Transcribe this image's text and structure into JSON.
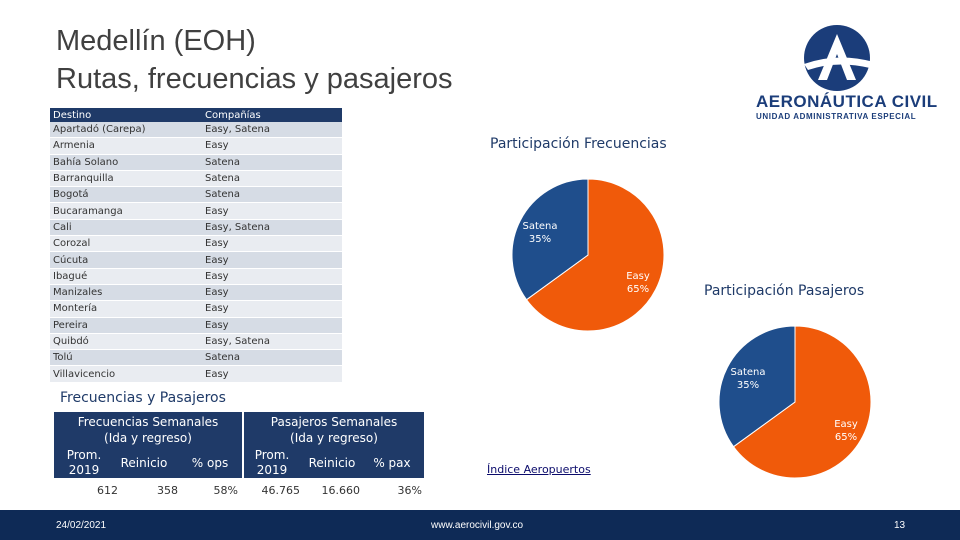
{
  "title": {
    "line1": "Medellín (EOH)",
    "line2": "Rutas, frecuencias y pasajeros"
  },
  "logo": {
    "name": "AERONÁUTICA CIVIL",
    "subtitle": "UNIDAD ADMINISTRATIVA ESPECIAL"
  },
  "routes_table": {
    "headers": [
      "Destino",
      "Compañías"
    ],
    "rows": [
      [
        "Apartadó (Carepa)",
        "Easy, Satena"
      ],
      [
        "Armenia",
        "Easy"
      ],
      [
        "Bahía Solano",
        "Satena"
      ],
      [
        "Barranquilla",
        "Satena"
      ],
      [
        "Bogotá",
        "Satena"
      ],
      [
        "Bucaramanga",
        "Easy"
      ],
      [
        "Cali",
        "Easy, Satena"
      ],
      [
        "Corozal",
        "Easy"
      ],
      [
        "Cúcuta",
        "Easy"
      ],
      [
        "Ibagué",
        "Easy"
      ],
      [
        "Manizales",
        "Easy"
      ],
      [
        "Montería",
        "Easy"
      ],
      [
        "Pereira",
        "Easy"
      ],
      [
        "Quibdó",
        "Easy, Satena"
      ],
      [
        "Tolú",
        "Satena"
      ],
      [
        "Villavicencio",
        "Easy"
      ]
    ]
  },
  "summary": {
    "section_title": "Frecuencias y Pasajeros",
    "freq_header": [
      "Frecuencias Semanales",
      "(Ida y regreso)"
    ],
    "pax_header": [
      "Pasajeros Semanales",
      "(Ida y regreso)"
    ],
    "freq_subs": {
      "prom": [
        "Prom.",
        "2019"
      ],
      "reinicio": "Reinicio",
      "pct": "% ops"
    },
    "pax_subs": {
      "prom": [
        "Prom.",
        "2019"
      ],
      "reinicio": "Reinicio",
      "pct": "% pax"
    },
    "freq_values": {
      "prom": "612",
      "reinicio": "358",
      "pct": "58%"
    },
    "pax_values": {
      "prom": "46.765",
      "reinicio": "16.660",
      "pct": "36%"
    }
  },
  "chart_data": [
    {
      "type": "pie",
      "title": "Participación Frecuencias",
      "categories": [
        "Satena",
        "Easy"
      ],
      "values": [
        35,
        65
      ],
      "labels": [
        "35%",
        "65%"
      ],
      "colors": [
        "#1f4e8c",
        "#f05a0a"
      ]
    },
    {
      "type": "pie",
      "title": "Participación Pasajeros",
      "categories": [
        "Satena",
        "Easy"
      ],
      "values": [
        35,
        65
      ],
      "labels": [
        "35%",
        "65%"
      ],
      "colors": [
        "#1f4e8c",
        "#f05a0a"
      ]
    }
  ],
  "link": {
    "label": "Índice Aeropuertos"
  },
  "footer": {
    "date": "24/02/2021",
    "url": "www.aerocivil.gov.co",
    "page": "13"
  }
}
